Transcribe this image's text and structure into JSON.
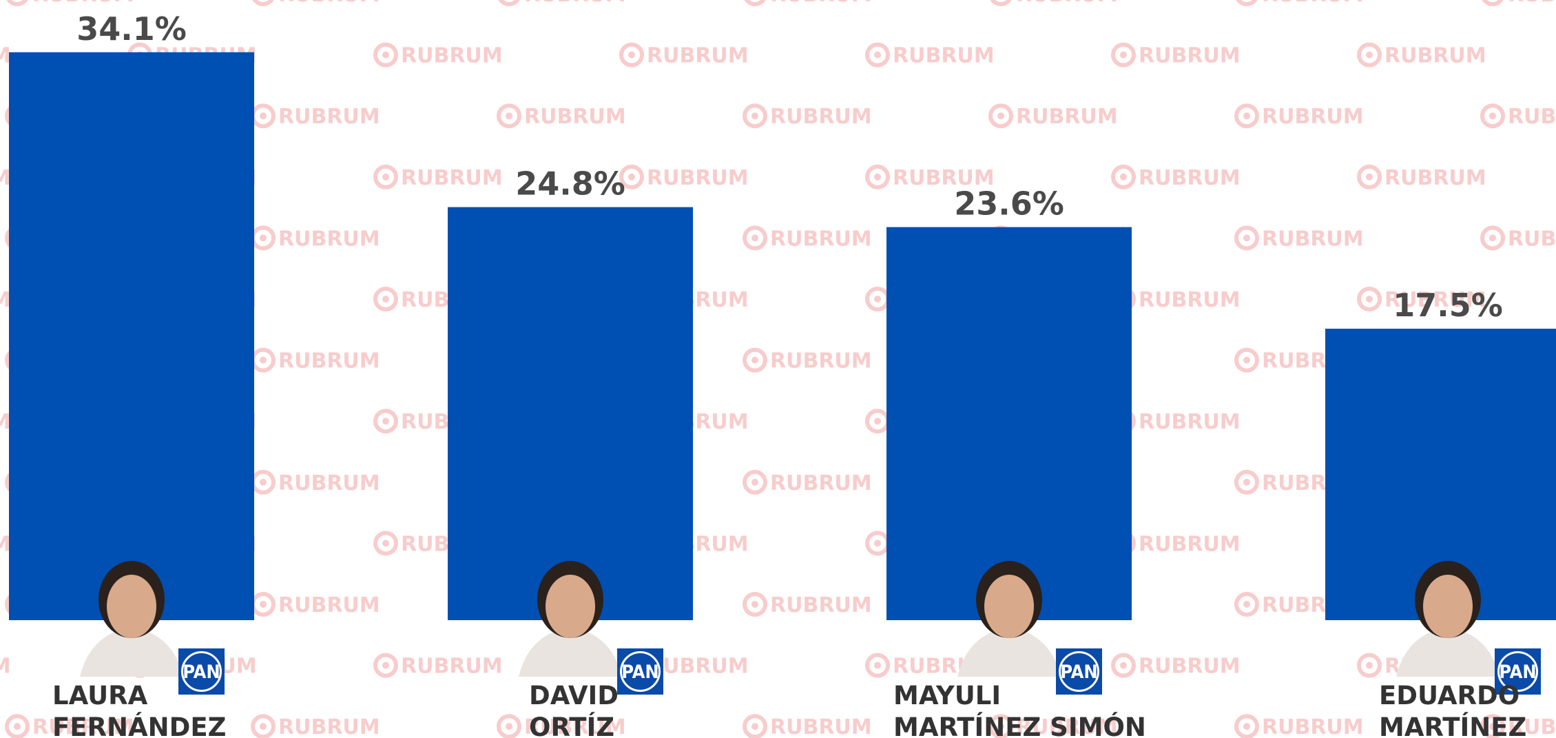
{
  "chart_data": {
    "type": "bar",
    "categories": [
      [
        "LAURA",
        "FERNÁNDEZ"
      ],
      [
        "DAVID",
        "ORTÍZ"
      ],
      [
        "MAYULI",
        "MARTÍNEZ SIMÓN"
      ],
      [
        "EDUARDO",
        "MARTÍNEZ"
      ]
    ],
    "values": [
      34.1,
      24.8,
      23.6,
      17.5
    ],
    "value_labels": [
      "34.1%",
      "24.8%",
      "23.6%",
      "17.5%"
    ],
    "color": "#004fb3",
    "party_logo": "PAN",
    "watermark": "RUBRUM"
  }
}
